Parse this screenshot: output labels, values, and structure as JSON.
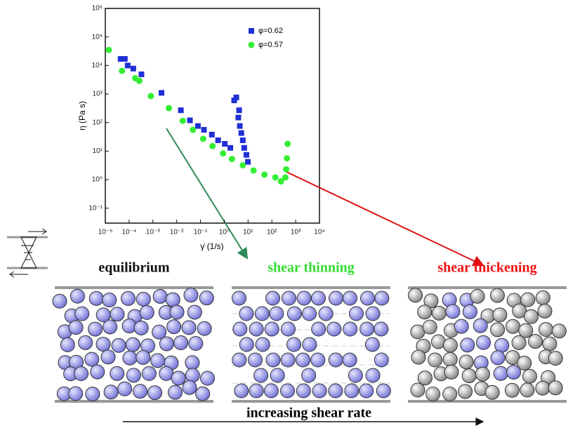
{
  "chart_data": {
    "type": "scatter",
    "x_label": "γ̇ (1/s)",
    "y_label": "η (Pa s)",
    "xscale": "log",
    "yscale": "log",
    "xlim": [
      1e-05,
      10000
    ],
    "ylim": [
      0.03,
      1000000
    ],
    "xticks": [
      {
        "value": 1e-05,
        "label": "10⁻⁵"
      },
      {
        "value": 0.0001,
        "label": "10⁻⁴"
      },
      {
        "value": 0.001,
        "label": "10⁻³"
      },
      {
        "value": 0.01,
        "label": "10⁻²"
      },
      {
        "value": 0.1,
        "label": "10⁻¹"
      },
      {
        "value": 1,
        "label": "10⁰"
      },
      {
        "value": 10,
        "label": "10¹"
      },
      {
        "value": 100,
        "label": "10²"
      },
      {
        "value": 1000,
        "label": "10³"
      },
      {
        "value": 10000,
        "label": "10⁴"
      }
    ],
    "yticks": [
      {
        "value": 0.1,
        "label": "10⁻¹"
      },
      {
        "value": 1,
        "label": "10⁰"
      },
      {
        "value": 10,
        "label": "10¹"
      },
      {
        "value": 100,
        "label": "10²"
      },
      {
        "value": 1000,
        "label": "10³"
      },
      {
        "value": 10000,
        "label": "10⁴"
      },
      {
        "value": 100000,
        "label": "10⁵"
      },
      {
        "value": 1000000,
        "label": "10⁶"
      }
    ],
    "legend": "upper right",
    "series": [
      {
        "name": "φ=0.62",
        "color": "#1f2fd6",
        "marker": "square",
        "x": [
          4.4e-05,
          6.6e-05,
          8.7e-05,
          0.00015,
          0.00033,
          0.0023,
          0.015,
          0.036,
          0.078,
          0.14,
          0.3,
          0.55,
          1.05,
          1.8,
          2.6,
          3.2,
          3.9,
          4.2,
          4.5,
          5.2,
          6.0,
          6.9,
          8.5,
          9.8
        ],
        "values": [
          17000,
          17000,
          10000,
          7800,
          4900,
          1100,
          270,
          120,
          76,
          56,
          38,
          24,
          18,
          13,
          600,
          760,
          150,
          270,
          76,
          43,
          24,
          13,
          7.4,
          4.2
        ]
      },
      {
        "name": "φ=0.57",
        "color": "#33ee33",
        "marker": "circle",
        "x": [
          1.4e-05,
          5e-05,
          0.00018,
          0.00027,
          0.00082,
          0.0047,
          0.018,
          0.048,
          0.13,
          0.32,
          0.89,
          2.1,
          6.0,
          17,
          49,
          140,
          240,
          370,
          400,
          430,
          460
        ],
        "values": [
          35000,
          6500,
          3600,
          2900,
          850,
          320,
          115,
          56,
          27,
          15,
          8.3,
          5.3,
          3.2,
          2.1,
          1.5,
          1.2,
          0.87,
          1.2,
          2.3,
          5.6,
          18
        ]
      }
    ]
  },
  "panels": [
    {
      "label": "equilibrium",
      "color": "#111111"
    },
    {
      "label": "shear thinning",
      "color": "#33dd33"
    },
    {
      "label": "shear thickening",
      "color": "#ee1111"
    }
  ],
  "footer": "increasing shear rate"
}
